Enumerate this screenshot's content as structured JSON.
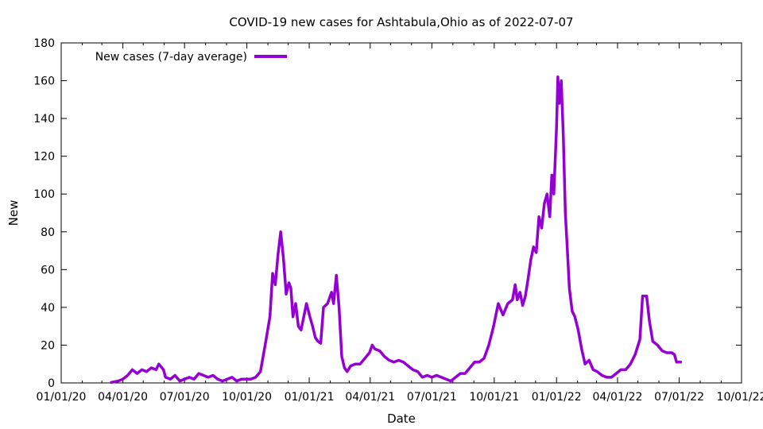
{
  "chart_data": {
    "type": "line",
    "title": "COVID-19 new cases for Ashtabula,Ohio as of 2022-07-07",
    "xlabel": "Date",
    "ylabel": "New",
    "xlim": [
      "2020-01-01",
      "2022-10-01"
    ],
    "ylim": [
      0,
      180
    ],
    "x_ticks": [
      "01/01/20",
      "04/01/20",
      "07/01/20",
      "10/01/20",
      "01/01/21",
      "04/01/21",
      "07/01/21",
      "10/01/21",
      "01/01/22",
      "04/01/22",
      "07/01/22",
      "10/01/22"
    ],
    "y_ticks": [
      0,
      20,
      40,
      60,
      80,
      100,
      120,
      140,
      160,
      180
    ],
    "grid": false,
    "legend_position": "top-left",
    "series": [
      {
        "name": "New cases (7-day average)",
        "color": "#9400d3",
        "points": [
          [
            "2020-03-15",
            0.3
          ],
          [
            "2020-03-25",
            1
          ],
          [
            "2020-04-01",
            2
          ],
          [
            "2020-04-08",
            4
          ],
          [
            "2020-04-15",
            7
          ],
          [
            "2020-04-22",
            5
          ],
          [
            "2020-04-29",
            7
          ],
          [
            "2020-05-06",
            6
          ],
          [
            "2020-05-13",
            8
          ],
          [
            "2020-05-20",
            7
          ],
          [
            "2020-05-24",
            10
          ],
          [
            "2020-05-31",
            7
          ],
          [
            "2020-06-03",
            3
          ],
          [
            "2020-06-10",
            2
          ],
          [
            "2020-06-17",
            4
          ],
          [
            "2020-06-24",
            1
          ],
          [
            "2020-07-01",
            2
          ],
          [
            "2020-07-08",
            3
          ],
          [
            "2020-07-15",
            2
          ],
          [
            "2020-07-22",
            5
          ],
          [
            "2020-07-29",
            4
          ],
          [
            "2020-08-05",
            3
          ],
          [
            "2020-08-12",
            4
          ],
          [
            "2020-08-19",
            2
          ],
          [
            "2020-08-26",
            1
          ],
          [
            "2020-09-02",
            2
          ],
          [
            "2020-09-09",
            3
          ],
          [
            "2020-09-16",
            1
          ],
          [
            "2020-09-23",
            2
          ],
          [
            "2020-09-30",
            2
          ],
          [
            "2020-10-07",
            2
          ],
          [
            "2020-10-14",
            3
          ],
          [
            "2020-10-21",
            6
          ],
          [
            "2020-10-28",
            20
          ],
          [
            "2020-11-04",
            35
          ],
          [
            "2020-11-08",
            58
          ],
          [
            "2020-11-12",
            52
          ],
          [
            "2020-11-16",
            68
          ],
          [
            "2020-11-20",
            80
          ],
          [
            "2020-11-24",
            66
          ],
          [
            "2020-11-28",
            47
          ],
          [
            "2020-12-02",
            53
          ],
          [
            "2020-12-05",
            50
          ],
          [
            "2020-12-08",
            35
          ],
          [
            "2020-12-12",
            42
          ],
          [
            "2020-12-16",
            30
          ],
          [
            "2020-12-20",
            28
          ],
          [
            "2020-12-24",
            35
          ],
          [
            "2020-12-28",
            42
          ],
          [
            "2021-01-02",
            35
          ],
          [
            "2021-01-06",
            30
          ],
          [
            "2021-01-10",
            24
          ],
          [
            "2021-01-14",
            22
          ],
          [
            "2021-01-18",
            21
          ],
          [
            "2021-01-22",
            40
          ],
          [
            "2021-01-28",
            42
          ],
          [
            "2021-02-03",
            48
          ],
          [
            "2021-02-06",
            42
          ],
          [
            "2021-02-10",
            57
          ],
          [
            "2021-02-14",
            40
          ],
          [
            "2021-02-18",
            14
          ],
          [
            "2021-02-22",
            8
          ],
          [
            "2021-02-26",
            6
          ],
          [
            "2021-03-03",
            9
          ],
          [
            "2021-03-10",
            10
          ],
          [
            "2021-03-17",
            10
          ],
          [
            "2021-03-24",
            13
          ],
          [
            "2021-03-31",
            16
          ],
          [
            "2021-04-04",
            20
          ],
          [
            "2021-04-08",
            18
          ],
          [
            "2021-04-15",
            17
          ],
          [
            "2021-04-22",
            14
          ],
          [
            "2021-04-29",
            12
          ],
          [
            "2021-05-06",
            11
          ],
          [
            "2021-05-13",
            12
          ],
          [
            "2021-05-20",
            11
          ],
          [
            "2021-05-27",
            9
          ],
          [
            "2021-06-03",
            7
          ],
          [
            "2021-06-10",
            6
          ],
          [
            "2021-06-17",
            3
          ],
          [
            "2021-06-24",
            4
          ],
          [
            "2021-07-01",
            3
          ],
          [
            "2021-07-08",
            4
          ],
          [
            "2021-07-15",
            3
          ],
          [
            "2021-07-22",
            2
          ],
          [
            "2021-07-29",
            1
          ],
          [
            "2021-08-05",
            3
          ],
          [
            "2021-08-12",
            5
          ],
          [
            "2021-08-19",
            5
          ],
          [
            "2021-08-26",
            8
          ],
          [
            "2021-09-02",
            11
          ],
          [
            "2021-09-09",
            11
          ],
          [
            "2021-09-16",
            13
          ],
          [
            "2021-09-23",
            20
          ],
          [
            "2021-09-30",
            30
          ],
          [
            "2021-10-07",
            42
          ],
          [
            "2021-10-14",
            36
          ],
          [
            "2021-10-21",
            42
          ],
          [
            "2021-10-28",
            44
          ],
          [
            "2021-11-01",
            52
          ],
          [
            "2021-11-04",
            44
          ],
          [
            "2021-11-08",
            48
          ],
          [
            "2021-11-12",
            41
          ],
          [
            "2021-11-16",
            46
          ],
          [
            "2021-11-20",
            55
          ],
          [
            "2021-11-24",
            65
          ],
          [
            "2021-11-28",
            72
          ],
          [
            "2021-12-02",
            69
          ],
          [
            "2021-12-06",
            88
          ],
          [
            "2021-12-10",
            82
          ],
          [
            "2021-12-14",
            95
          ],
          [
            "2021-12-18",
            100
          ],
          [
            "2021-12-22",
            88
          ],
          [
            "2021-12-25",
            110
          ],
          [
            "2021-12-28",
            100
          ],
          [
            "2022-01-01",
            135
          ],
          [
            "2022-01-03",
            162
          ],
          [
            "2022-01-05",
            148
          ],
          [
            "2022-01-08",
            160
          ],
          [
            "2022-01-11",
            130
          ],
          [
            "2022-01-14",
            90
          ],
          [
            "2022-01-17",
            70
          ],
          [
            "2022-01-20",
            50
          ],
          [
            "2022-01-24",
            38
          ],
          [
            "2022-01-28",
            35
          ],
          [
            "2022-02-02",
            28
          ],
          [
            "2022-02-07",
            18
          ],
          [
            "2022-02-12",
            10
          ],
          [
            "2022-02-18",
            12
          ],
          [
            "2022-02-24",
            7
          ],
          [
            "2022-03-02",
            6
          ],
          [
            "2022-03-09",
            4
          ],
          [
            "2022-03-16",
            3
          ],
          [
            "2022-03-23",
            3
          ],
          [
            "2022-03-30",
            5
          ],
          [
            "2022-04-06",
            7
          ],
          [
            "2022-04-13",
            7
          ],
          [
            "2022-04-20",
            10
          ],
          [
            "2022-04-27",
            15
          ],
          [
            "2022-05-04",
            23
          ],
          [
            "2022-05-08",
            46
          ],
          [
            "2022-05-14",
            46
          ],
          [
            "2022-05-18",
            33
          ],
          [
            "2022-05-23",
            22
          ],
          [
            "2022-05-30",
            20
          ],
          [
            "2022-06-06",
            17
          ],
          [
            "2022-06-13",
            16
          ],
          [
            "2022-06-20",
            16
          ],
          [
            "2022-06-24",
            15
          ],
          [
            "2022-06-27",
            11
          ],
          [
            "2022-07-03",
            11
          ]
        ]
      }
    ]
  }
}
